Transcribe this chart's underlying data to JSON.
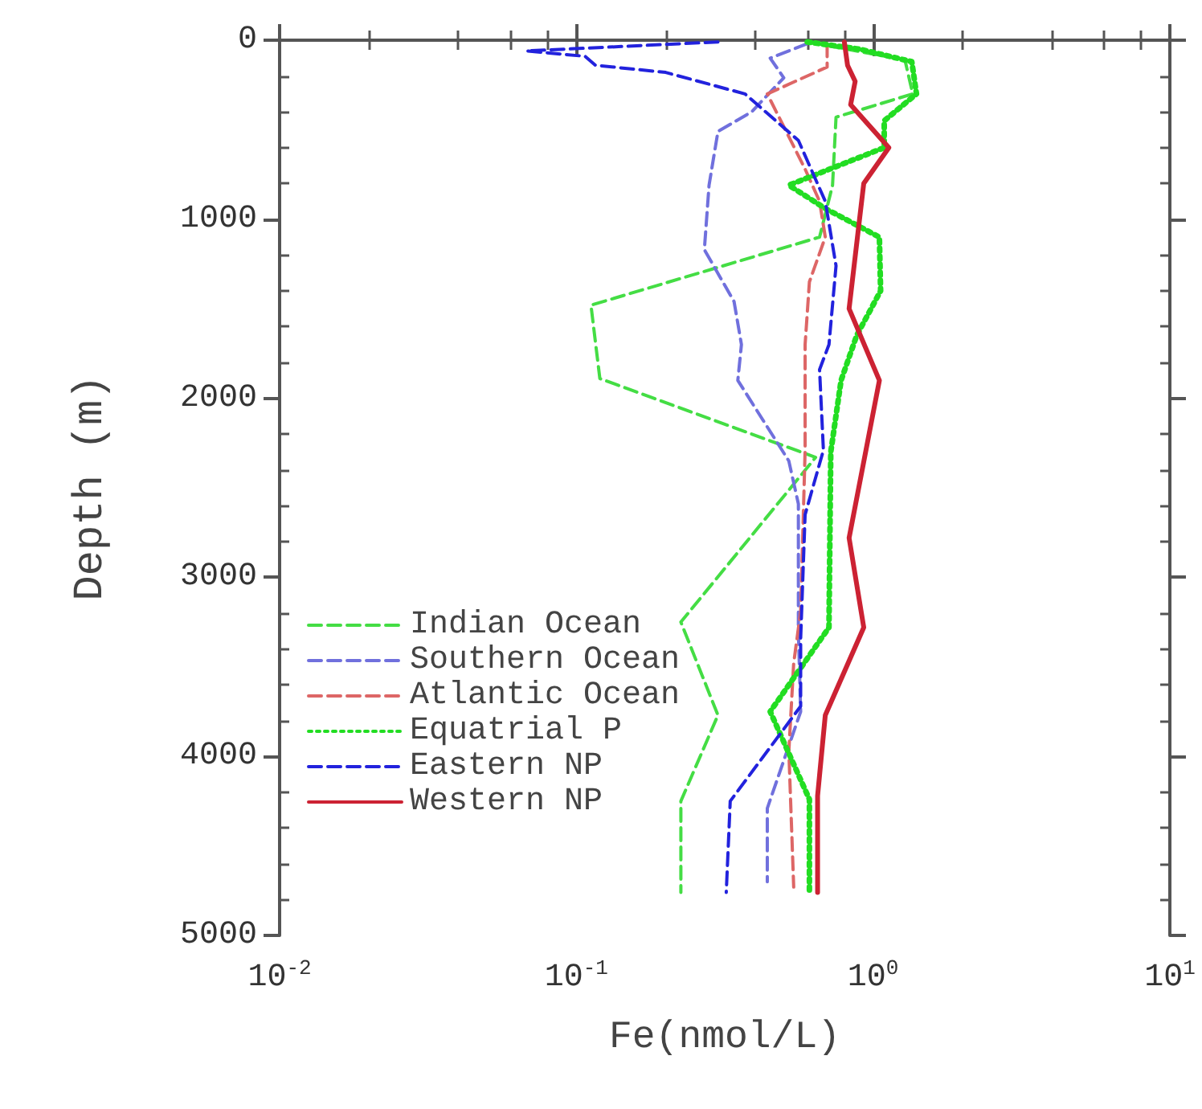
{
  "chart_data": {
    "type": "line",
    "xlabel": "Fe(nmol/L)",
    "ylabel": "Depth (m)",
    "log": "x",
    "xlim": [
      0.01,
      10
    ],
    "ylim": [
      5000,
      0
    ],
    "xticks": [
      {
        "value": 0.01,
        "label": "10$^{-2}$"
      },
      {
        "value": 0.02,
        "label": null
      },
      {
        "value": 0.04,
        "label": null
      },
      {
        "value": 0.06,
        "label": null
      },
      {
        "value": 0.08,
        "label": null
      },
      {
        "value": 0.1,
        "label": "10$^{-1}$"
      },
      {
        "value": 0.2,
        "label": null
      },
      {
        "value": 0.4,
        "label": null
      },
      {
        "value": 0.6,
        "label": null
      },
      {
        "value": 0.8,
        "label": null
      },
      {
        "value": 1,
        "label": "10$^{0}$"
      },
      {
        "value": 2,
        "label": null
      },
      {
        "value": 4,
        "label": null
      },
      {
        "value": 6,
        "label": null
      },
      {
        "value": 8,
        "label": null
      },
      {
        "value": 10,
        "label": "10$^{1}$"
      }
    ],
    "yticks": [
      0,
      {
        "value": 200,
        "label": null
      },
      {
        "value": 400,
        "label": null
      },
      {
        "value": 600,
        "label": null
      },
      {
        "value": 800,
        "label": null
      },
      1000,
      {
        "value": 1200,
        "label": null
      },
      {
        "value": 1400,
        "label": null
      },
      {
        "value": 1600,
        "label": null
      },
      {
        "value": 1800,
        "label": null
      },
      2000,
      {
        "value": 2200,
        "label": null
      },
      {
        "value": 2400,
        "label": null
      },
      {
        "value": 2600,
        "label": null
      },
      {
        "value": 2800,
        "label": null
      },
      3000,
      {
        "value": 3200,
        "label": null
      },
      {
        "value": 3400,
        "label": null
      },
      {
        "value": 3600,
        "label": null
      },
      {
        "value": 3800,
        "label": null
      },
      4000,
      {
        "value": 4200,
        "label": null
      },
      {
        "value": 4400,
        "label": null
      },
      {
        "value": 4600,
        "label": null
      },
      {
        "value": 4800,
        "label": null
      },
      5000
    ],
    "grid": false,
    "legend": "bottom left",
    "marker": "none",
    "series": [
      {
        "name": "Indian Ocean",
        "color": "#44dd44",
        "line_style": "dashed",
        "x": [
          0.6,
          1.28,
          1.36,
          0.75,
          0.73,
          0.66,
          0.112,
          0.12,
          0.64,
          0.225,
          0.3,
          0.225,
          0.225
        ],
        "values": [
          10,
          110,
          300,
          430,
          810,
          1100,
          1480,
          1890,
          2330,
          3250,
          3770,
          4250,
          4760
        ]
      },
      {
        "name": "Southern Ocean",
        "color": "#7070dd",
        "line_style": "dashed",
        "x": [
          0.6,
          0.45,
          0.5,
          0.39,
          0.3,
          0.28,
          0.27,
          0.34,
          0.36,
          0.35,
          0.52,
          0.56,
          0.56,
          0.57,
          0.44,
          0.44
        ],
        "values": [
          20,
          100,
          210,
          400,
          510,
          810,
          1170,
          1460,
          1700,
          1900,
          2350,
          2590,
          3300,
          3750,
          4290,
          4700
        ]
      },
      {
        "name": "Atlantic Ocean",
        "color": "#dd6666",
        "line_style": "dashed",
        "x": [
          0.7,
          0.7,
          0.44,
          0.59,
          0.66,
          0.69,
          0.61,
          0.59,
          0.59,
          0.57,
          0.54,
          0.52,
          0.54
        ],
        "values": [
          20,
          150,
          300,
          720,
          900,
          1100,
          1350,
          1700,
          2290,
          3190,
          3480,
          3970,
          4730
        ]
      },
      {
        "name": "Equatrial P",
        "color": "#22dd22",
        "line_style": "dotted",
        "x": [
          0.6,
          0.9,
          1.35,
          1.4,
          1.09,
          1.09,
          0.52,
          0.69,
          1.05,
          1.06,
          0.88,
          0.78,
          0.72,
          0.71,
          0.45,
          0.61,
          0.61
        ],
        "values": [
          10,
          50,
          120,
          300,
          450,
          600,
          810,
          940,
          1100,
          1400,
          1650,
          1900,
          2300,
          3280,
          3750,
          4240,
          4760
        ]
      },
      {
        "name": "Eastern NP",
        "color": "#2222dd",
        "line_style": "dashed",
        "x": [
          0.3,
          0.068,
          0.107,
          0.116,
          0.2,
          0.37,
          0.56,
          0.69,
          0.75,
          0.71,
          0.66,
          0.68,
          0.59,
          0.57,
          0.57,
          0.33,
          0.32
        ],
        "values": [
          10,
          60,
          90,
          140,
          180,
          300,
          560,
          900,
          1260,
          1700,
          1840,
          2290,
          2650,
          3340,
          3720,
          4250,
          4760
        ]
      },
      {
        "name": "Western NP",
        "color": "#cc2233",
        "line_style": "solid",
        "x": [
          0.8,
          0.82,
          0.87,
          0.84,
          1.13,
          0.93,
          0.9,
          0.83,
          1.05,
          0.83,
          0.93,
          0.69,
          0.65,
          0.65
        ],
        "values": [
          10,
          140,
          230,
          360,
          600,
          800,
          1000,
          1500,
          1900,
          2780,
          3280,
          3770,
          4220,
          4760
        ]
      }
    ]
  }
}
